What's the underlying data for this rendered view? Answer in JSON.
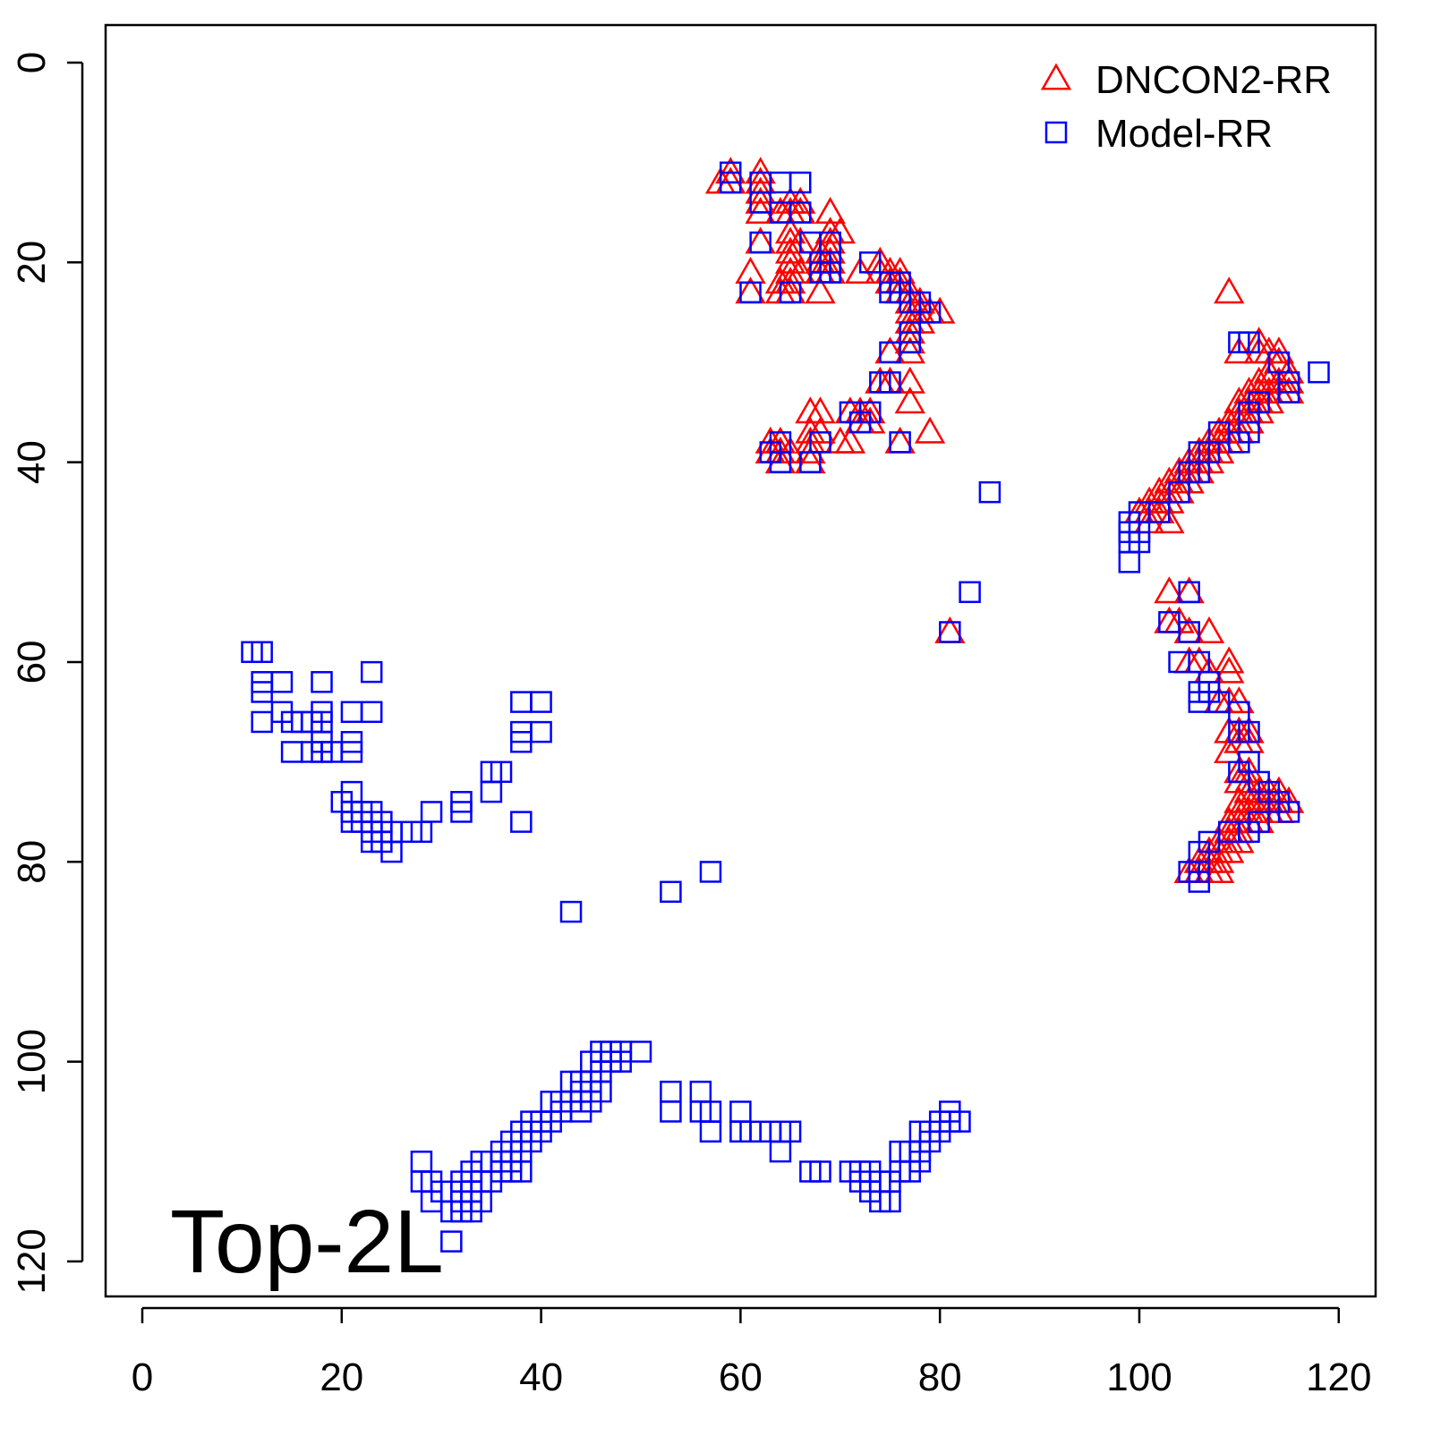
{
  "chart_data": {
    "type": "scatter",
    "annotation": "Top-2L",
    "legend": "topright",
    "xlim": [
      -3.68,
      123.7
    ],
    "ylim": [
      123.5,
      -3.76
    ],
    "xticks": [
      0,
      20,
      40,
      60,
      80,
      100,
      120
    ],
    "yticks": [
      0,
      20,
      40,
      60,
      80,
      100,
      120
    ],
    "series": [
      {
        "name": "DNCON2-RR",
        "color": "#ff0000",
        "marker": "triangle",
        "x": [
          58,
          59,
          59,
          62,
          62,
          62,
          62,
          62,
          62,
          61,
          61,
          64,
          65,
          65,
          66,
          66,
          65,
          65,
          66,
          65,
          65,
          65,
          66,
          64,
          65,
          64,
          65,
          68,
          69,
          69,
          70,
          69,
          68,
          69,
          68,
          69,
          68,
          69,
          72,
          74,
          74,
          75,
          75,
          76,
          76,
          76,
          77,
          77,
          78,
          77,
          78,
          79,
          80,
          77,
          78,
          77,
          77,
          77,
          75,
          75,
          74,
          77,
          77,
          79,
          76,
          71,
          72,
          73,
          72,
          73,
          71,
          70,
          67,
          68,
          67,
          68,
          67,
          67,
          67,
          63,
          64,
          63,
          64,
          64,
          65,
          81,
          109,
          110,
          112,
          112,
          113,
          114,
          114,
          115,
          113,
          112,
          113,
          114,
          115,
          111,
          112,
          113,
          114,
          115,
          110,
          111,
          112,
          113,
          110,
          111,
          112,
          109,
          110,
          111,
          108,
          109,
          110,
          107,
          108,
          109,
          106,
          107,
          108,
          105,
          106,
          107,
          104,
          105,
          106,
          103,
          104,
          105,
          102,
          103,
          104,
          101,
          102,
          103,
          100,
          101,
          102,
          103,
          101,
          103,
          105,
          103,
          104,
          105,
          107,
          105,
          106,
          107,
          109,
          109,
          108,
          109,
          110,
          109,
          110,
          111,
          110,
          111,
          109,
          110,
          111,
          110,
          111,
          111,
          112,
          113,
          114,
          110,
          111,
          112,
          113,
          114,
          115,
          110,
          111,
          112,
          113,
          114,
          109,
          110,
          111,
          112,
          109,
          110,
          108,
          109,
          110,
          107,
          108,
          109,
          106,
          107,
          108,
          105,
          106,
          107,
          108
        ],
        "values": [
          12,
          11,
          12,
          11,
          12,
          13,
          14,
          15,
          18,
          21,
          23,
          15,
          14,
          15,
          14,
          15,
          17,
          18,
          18,
          19,
          20,
          21,
          21,
          22,
          22,
          23,
          23,
          23,
          15,
          17,
          17,
          18,
          19,
          19,
          20,
          20,
          21,
          21,
          21,
          20,
          21,
          21,
          22,
          21,
          22,
          23,
          23,
          24,
          24,
          25,
          25,
          25,
          25,
          26,
          26,
          27,
          28,
          29,
          29,
          32,
          32,
          32,
          34,
          37,
          38,
          35,
          35,
          35,
          36,
          36,
          38,
          38,
          35,
          35,
          37,
          37,
          38,
          39,
          40,
          38,
          38,
          39,
          39,
          40,
          39,
          57,
          23,
          29,
          28,
          29,
          29,
          29,
          30,
          31,
          31,
          32,
          32,
          32,
          32,
          33,
          33,
          33,
          33,
          33,
          34,
          34,
          34,
          34,
          35,
          35,
          35,
          36,
          36,
          36,
          37,
          37,
          37,
          38,
          38,
          38,
          39,
          39,
          39,
          40,
          40,
          40,
          41,
          41,
          41,
          42,
          42,
          42,
          43,
          43,
          43,
          44,
          44,
          44,
          45,
          45,
          45,
          46,
          46,
          53,
          53,
          56,
          56,
          57,
          57,
          60,
          60,
          61,
          60,
          61,
          64,
          64,
          64,
          67,
          67,
          67,
          68,
          68,
          69,
          71,
          71,
          72,
          72,
          73,
          73,
          73,
          73,
          74,
          74,
          74,
          74,
          74,
          74,
          75,
          75,
          75,
          75,
          75,
          76,
          76,
          76,
          76,
          77,
          77,
          78,
          78,
          78,
          79,
          79,
          79,
          80,
          80,
          80,
          81,
          81,
          81,
          81
        ]
      },
      {
        "name": "Model-RR",
        "color": "#0000ff",
        "marker": "square",
        "x": [
          59,
          59,
          62,
          64,
          66,
          62,
          64,
          66,
          62,
          67,
          69,
          61,
          65,
          68,
          69,
          68,
          69,
          73,
          75,
          75,
          76,
          76,
          77,
          78,
          79,
          77,
          77,
          75,
          74,
          75,
          76,
          71,
          73,
          72,
          68,
          67,
          64,
          64,
          63,
          85,
          83,
          81,
          110,
          111,
          114,
          118,
          115,
          115,
          112,
          111,
          111,
          110,
          108,
          107,
          106,
          106,
          105,
          104,
          102,
          100,
          99,
          99,
          100,
          99,
          100,
          99,
          105,
          103,
          105,
          104,
          106,
          107,
          106,
          107,
          106,
          108,
          110,
          110,
          111,
          111,
          110,
          112,
          113,
          114,
          115,
          112,
          111,
          109,
          107,
          106,
          105,
          106,
          106,
          11,
          12,
          12,
          12,
          14,
          18,
          23,
          12,
          14,
          15,
          16,
          17,
          18,
          18,
          21,
          23,
          15,
          17,
          18,
          18,
          19,
          21,
          21,
          20,
          21,
          21,
          21,
          22,
          22,
          23,
          23,
          23,
          24,
          24,
          24,
          25,
          25,
          27,
          28,
          29,
          32,
          32,
          35,
          36,
          35,
          38,
          40,
          38,
          38,
          40,
          38,
          43,
          53,
          57,
          28,
          28,
          29,
          29,
          30,
          31,
          31,
          31,
          32,
          32,
          32,
          33,
          33,
          33,
          34,
          34,
          34,
          35,
          35,
          36,
          36,
          36,
          37,
          37,
          37,
          38,
          38,
          38,
          39,
          39,
          40,
          40,
          41,
          41,
          42,
          42,
          43,
          43,
          44,
          44,
          44,
          45,
          45,
          45,
          46,
          46,
          46,
          47,
          47,
          48,
          48,
          50,
          53,
          53,
          56,
          56,
          57,
          57,
          60,
          60,
          61,
          62,
          63,
          64,
          64,
          65,
          67,
          68,
          71,
          72,
          72,
          73,
          73,
          74,
          74,
          75,
          75,
          76,
          76,
          77,
          77,
          78,
          78,
          78,
          79,
          79,
          80,
          80,
          81,
          81,
          82
        ],
        "values": [
          11,
          12,
          12,
          12,
          12,
          14,
          15,
          15,
          18,
          18,
          18,
          23,
          23,
          20,
          20,
          21,
          21,
          20,
          22,
          23,
          22,
          23,
          24,
          24,
          25,
          27,
          28,
          29,
          32,
          32,
          38,
          35,
          35,
          36,
          38,
          40,
          38,
          40,
          39,
          43,
          53,
          57,
          28,
          28,
          30,
          31,
          32,
          33,
          34,
          35,
          37,
          38,
          37,
          39,
          39,
          41,
          41,
          43,
          45,
          45,
          46,
          47,
          47,
          48,
          48,
          50,
          53,
          56,
          57,
          60,
          60,
          62,
          63,
          63,
          64,
          64,
          65,
          67,
          67,
          70,
          71,
          72,
          73,
          74,
          75,
          76,
          77,
          77,
          78,
          79,
          81,
          81,
          82,
          59,
          59,
          62,
          63,
          62,
          62,
          61,
          66,
          65,
          66,
          66,
          66,
          65,
          66,
          65,
          65,
          69,
          69,
          68,
          69,
          69,
          68,
          69,
          74,
          73,
          75,
          76,
          75,
          76,
          75,
          77,
          78,
          76,
          77,
          78,
          77,
          79,
          77,
          77,
          75,
          74,
          75,
          71,
          71,
          73,
          64,
          64,
          67,
          68,
          67,
          76,
          85,
          83,
          81,
          110,
          112,
          112,
          114,
          113,
          113,
          115,
          118,
          112,
          114,
          115,
          111,
          113,
          115,
          110,
          112,
          114,
          110,
          112,
          109,
          110,
          111,
          108,
          110,
          111,
          107,
          109,
          111,
          106,
          108,
          106,
          107,
          104,
          106,
          104,
          105,
          102,
          104,
          102,
          103,
          105,
          100,
          102,
          104,
          99,
          101,
          103,
          99,
          100,
          99,
          100,
          99,
          103,
          105,
          103,
          105,
          105,
          107,
          105,
          107,
          107,
          107,
          107,
          107,
          109,
          107,
          111,
          111,
          111,
          111,
          112,
          111,
          113,
          112,
          114,
          112,
          114,
          109,
          111,
          109,
          111,
          107,
          109,
          110,
          107,
          108,
          106,
          107,
          105,
          106,
          106
        ]
      }
    ]
  }
}
